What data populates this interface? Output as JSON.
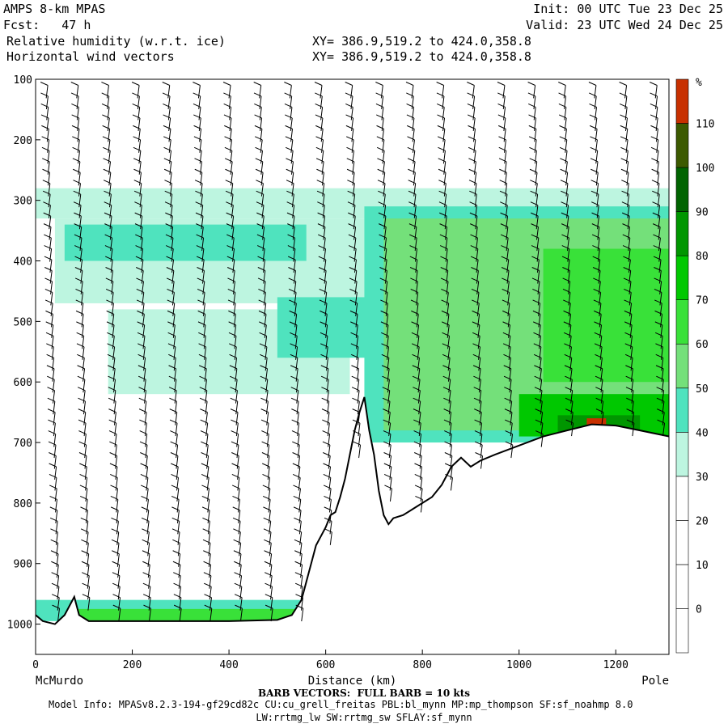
{
  "header": {
    "model": "AMPS 8-km MPAS",
    "fcst": "Fcst:   47 h",
    "field1": "Relative humidity (w.r.t. ice)",
    "field2": "Horizontal wind vectors",
    "init": "Init: 00 UTC Tue 23 Dec 25",
    "valid": "Valid: 23 UTC Wed 24 Dec 25",
    "xy1": "XY= 386.9,519.2 to 424.0,358.8",
    "xy2": "XY= 386.9,519.2 to 424.0,358.8"
  },
  "footer": {
    "barb_note": "BARB VECTORS:  FULL BARB = 10 kts",
    "model_info": "Model Info: MPASv8.2.3-194-gf29cd82c CU:cu_grell_freitas PBL:bl_mynn MP:mp_thompson SF:sf_noahmp 8.0",
    "model_info2": "LW:rrtmg_lw SW:rrtmg_sw SFLAY:sf_mynn"
  },
  "chart_data": {
    "type": "heatmap",
    "xlabel": "Distance (km)",
    "x_end_labels": [
      "McMurdo",
      "Pole"
    ],
    "xlim": [
      0,
      1310
    ],
    "ylim": [
      100,
      1050
    ],
    "y_reversed": true,
    "x_ticks": [
      0,
      200,
      400,
      600,
      800,
      1000,
      1200
    ],
    "y_ticks": [
      100,
      200,
      300,
      400,
      500,
      600,
      700,
      800,
      900,
      1000
    ],
    "colorbar": {
      "unit": "%",
      "levels": [
        0,
        10,
        20,
        30,
        40,
        50,
        60,
        70,
        80,
        90,
        100,
        110
      ],
      "colors": [
        "#ffffff",
        "#ffffff",
        "#ffffff",
        "#ffffff",
        "#bdf5e0",
        "#4fe3be",
        "#74e07a",
        "#39e139",
        "#00c800",
        "#009600",
        "#006400",
        "#3c5a00",
        "#c83000"
      ]
    },
    "terrain": [
      [
        0,
        985
      ],
      [
        15,
        995
      ],
      [
        40,
        1000
      ],
      [
        60,
        985
      ],
      [
        70,
        970
      ],
      [
        80,
        955
      ],
      [
        90,
        985
      ],
      [
        110,
        995
      ],
      [
        200,
        995
      ],
      [
        300,
        995
      ],
      [
        400,
        995
      ],
      [
        500,
        993
      ],
      [
        530,
        985
      ],
      [
        550,
        960
      ],
      [
        560,
        930
      ],
      [
        570,
        900
      ],
      [
        580,
        870
      ],
      [
        590,
        855
      ],
      [
        600,
        840
      ],
      [
        610,
        820
      ],
      [
        620,
        815
      ],
      [
        630,
        790
      ],
      [
        640,
        760
      ],
      [
        650,
        720
      ],
      [
        660,
        680
      ],
      [
        670,
        650
      ],
      [
        680,
        625
      ],
      [
        690,
        680
      ],
      [
        700,
        720
      ],
      [
        710,
        780
      ],
      [
        720,
        820
      ],
      [
        730,
        835
      ],
      [
        740,
        825
      ],
      [
        760,
        820
      ],
      [
        780,
        810
      ],
      [
        800,
        800
      ],
      [
        820,
        790
      ],
      [
        840,
        770
      ],
      [
        860,
        740
      ],
      [
        880,
        725
      ],
      [
        900,
        740
      ],
      [
        920,
        730
      ],
      [
        950,
        720
      ],
      [
        1000,
        705
      ],
      [
        1050,
        690
      ],
      [
        1100,
        680
      ],
      [
        1150,
        670
      ],
      [
        1200,
        672
      ],
      [
        1250,
        680
      ],
      [
        1310,
        690
      ]
    ],
    "rh_regions": [
      {
        "level": 30,
        "x": [
          0,
          1310
        ],
        "p": [
          280,
          330
        ]
      },
      {
        "level": 30,
        "x": [
          40,
          700
        ],
        "p": [
          330,
          470
        ]
      },
      {
        "level": 40,
        "x": [
          60,
          560
        ],
        "p": [
          340,
          400
        ]
      },
      {
        "level": 30,
        "x": [
          150,
          650
        ],
        "p": [
          480,
          620
        ]
      },
      {
        "level": 40,
        "x": [
          500,
          700
        ],
        "p": [
          460,
          560
        ]
      },
      {
        "level": 40,
        "x": [
          680,
          1310
        ],
        "p": [
          310,
          700
        ]
      },
      {
        "level": 50,
        "x": [
          720,
          1310
        ],
        "p": [
          330,
          680
        ]
      },
      {
        "level": 60,
        "x": [
          1050,
          1310
        ],
        "p": [
          380,
          600
        ]
      },
      {
        "level": 70,
        "x": [
          1000,
          1310
        ],
        "p": [
          620,
          690
        ]
      },
      {
        "level": 40,
        "x": [
          0,
          560
        ],
        "p": [
          960,
          995
        ]
      },
      {
        "level": 60,
        "x": [
          80,
          540
        ],
        "p": [
          975,
          995
        ]
      },
      {
        "level": 80,
        "x": [
          1080,
          1250
        ],
        "p": [
          655,
          685
        ]
      },
      {
        "level": 110,
        "x": [
          1140,
          1180
        ],
        "p": [
          660,
          680
        ]
      }
    ]
  }
}
